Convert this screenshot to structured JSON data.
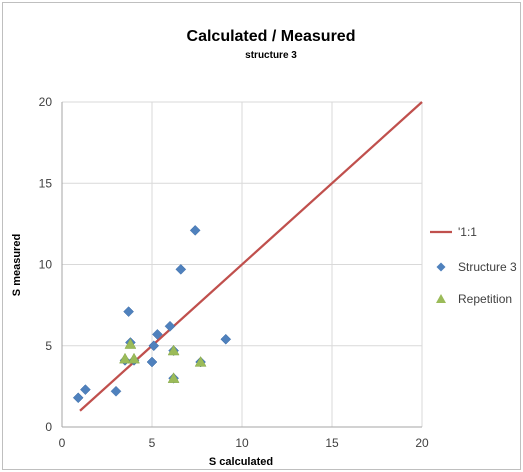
{
  "chart_data": {
    "type": "scatter",
    "title": "Calculated / Measured",
    "subtitle": "structure 3",
    "xlabel": "S calculated",
    "ylabel": "S measured",
    "xlim": [
      0,
      20
    ],
    "ylim": [
      0,
      20
    ],
    "x_ticks": [
      "0",
      "5",
      "10",
      "15",
      "20"
    ],
    "y_ticks": [
      "0",
      "5",
      "10",
      "15",
      "20"
    ],
    "grid": true,
    "legend_position": "right",
    "series": [
      {
        "name": "'1:1",
        "kind": "line",
        "color": "#c0504d",
        "points": [
          [
            1,
            1
          ],
          [
            20,
            20
          ]
        ]
      },
      {
        "name": "Structure 3",
        "kind": "marker",
        "marker": "diamond",
        "color": "#4f81bd",
        "points": [
          [
            0.9,
            1.8
          ],
          [
            1.3,
            2.3
          ],
          [
            3.0,
            2.2
          ],
          [
            3.5,
            4.1
          ],
          [
            3.7,
            7.1
          ],
          [
            3.8,
            5.2
          ],
          [
            4.0,
            4.1
          ],
          [
            5.0,
            4.0
          ],
          [
            5.1,
            5.0
          ],
          [
            5.3,
            5.7
          ],
          [
            6.0,
            6.2
          ],
          [
            6.2,
            4.7
          ],
          [
            6.2,
            3.0
          ],
          [
            6.6,
            9.7
          ],
          [
            7.4,
            12.1
          ],
          [
            7.7,
            4.0
          ],
          [
            9.1,
            5.4
          ]
        ]
      },
      {
        "name": "Repetition",
        "kind": "marker",
        "marker": "triangle",
        "color": "#9bbb59",
        "points": [
          [
            3.5,
            4.2
          ],
          [
            3.8,
            5.1
          ],
          [
            4.0,
            4.2
          ],
          [
            6.2,
            3.0
          ],
          [
            6.2,
            4.7
          ],
          [
            7.7,
            4.0
          ]
        ]
      }
    ]
  }
}
